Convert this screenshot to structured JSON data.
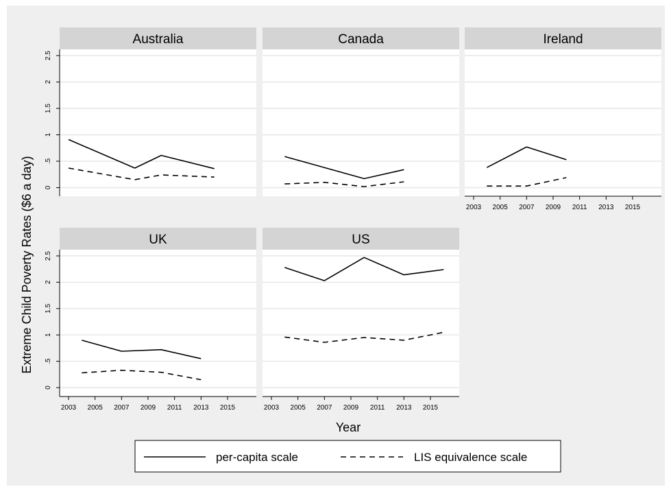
{
  "chart_data": {
    "type": "line",
    "ylabel": "Extreme Child Poverty Rates ($6 a day)",
    "xlabel": "Year",
    "ylim": [
      0,
      2.5
    ],
    "yticks": [
      "0",
      ".5",
      "1",
      "1.5",
      "2",
      "2.5"
    ],
    "yticks_values": [
      0,
      0.5,
      1,
      1.5,
      2,
      2.5
    ],
    "xlim": [
      2003,
      2015
    ],
    "xticks": [
      "2003",
      "2005",
      "2007",
      "2009",
      "2011",
      "2013",
      "2015"
    ],
    "xticks_values": [
      2003,
      2005,
      2007,
      2009,
      2011,
      2013,
      2015
    ],
    "grid": true,
    "legend": {
      "placement": "bottom",
      "entries": [
        {
          "label": "per-capita scale",
          "style": "solid"
        },
        {
          "label": "LIS equivalence scale",
          "style": "dashed"
        }
      ]
    },
    "panels": [
      {
        "title": "Australia",
        "series": [
          {
            "name": "per-capita scale",
            "x": [
              2003,
              2008,
              2010,
              2014
            ],
            "y": [
              0.91,
              0.37,
              0.61,
              0.36
            ]
          },
          {
            "name": "LIS equivalence scale",
            "x": [
              2003,
              2008,
              2010,
              2014
            ],
            "y": [
              0.37,
              0.15,
              0.24,
              0.2
            ]
          }
        ]
      },
      {
        "title": "Canada",
        "series": [
          {
            "name": "per-capita scale",
            "x": [
              2004,
              2010,
              2013
            ],
            "y": [
              0.59,
              0.17,
              0.34
            ]
          },
          {
            "name": "LIS equivalence scale",
            "x": [
              2004,
              2007,
              2010,
              2013
            ],
            "y": [
              0.07,
              0.1,
              0.02,
              0.11
            ]
          }
        ]
      },
      {
        "title": "Ireland",
        "series": [
          {
            "name": "per-capita scale",
            "x": [
              2004,
              2007,
              2010
            ],
            "y": [
              0.38,
              0.77,
              0.53
            ]
          },
          {
            "name": "LIS equivalence scale",
            "x": [
              2004,
              2007,
              2010
            ],
            "y": [
              0.03,
              0.03,
              0.19
            ]
          }
        ]
      },
      {
        "title": "UK",
        "series": [
          {
            "name": "per-capita scale",
            "x": [
              2004,
              2007,
              2010,
              2013
            ],
            "y": [
              0.9,
              0.69,
              0.72,
              0.55
            ]
          },
          {
            "name": "LIS equivalence scale",
            "x": [
              2004,
              2007,
              2010,
              2013
            ],
            "y": [
              0.28,
              0.33,
              0.29,
              0.15
            ]
          }
        ]
      },
      {
        "title": "US",
        "series": [
          {
            "name": "per-capita scale",
            "x": [
              2004,
              2007,
              2010,
              2013,
              2016
            ],
            "y": [
              2.28,
              2.03,
              2.47,
              2.14,
              2.24
            ]
          },
          {
            "name": "LIS equivalence scale",
            "x": [
              2004,
              2007,
              2010,
              2013,
              2016
            ],
            "y": [
              0.96,
              0.86,
              0.95,
              0.9,
              1.05
            ]
          }
        ]
      }
    ]
  }
}
